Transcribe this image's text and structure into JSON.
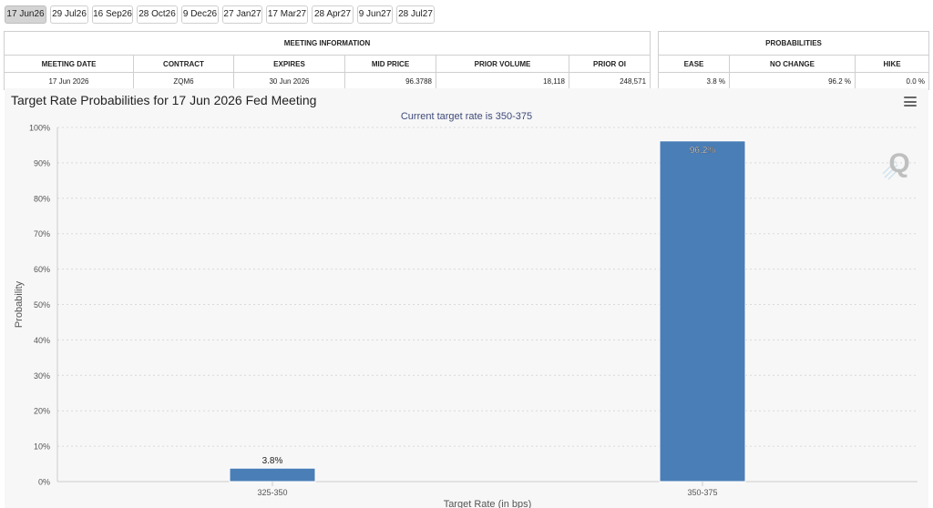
{
  "tabs": [
    {
      "label": "17 Jun26",
      "active": true
    },
    {
      "label": "29 Jul26"
    },
    {
      "label": "16 Sep26"
    },
    {
      "label": "28 Oct26"
    },
    {
      "label": "9 Dec26"
    },
    {
      "label": "27 Jan27"
    },
    {
      "label": "17 Mar27"
    },
    {
      "label": "28 Apr27"
    },
    {
      "label": "9 Jun27"
    },
    {
      "label": "28 Jul27"
    }
  ],
  "meeting_info": {
    "title": "MEETING INFORMATION",
    "headers": [
      "MEETING DATE",
      "CONTRACT",
      "EXPIRES",
      "MID PRICE",
      "PRIOR VOLUME",
      "PRIOR OI"
    ],
    "values": [
      "17 Jun 2026",
      "ZQM6",
      "30 Jun 2026",
      "96.3788",
      "18,118",
      "248,571"
    ]
  },
  "probabilities": {
    "title": "PROBABILITIES",
    "headers": [
      "EASE",
      "NO CHANGE",
      "HIKE"
    ],
    "values": [
      "3.8 %",
      "96.2 %",
      "0.0 %"
    ]
  },
  "chart": {
    "title": "Target Rate Probabilities for 17 Jun 2026 Fed Meeting",
    "subtitle": "Current target rate is 350-375",
    "watermark": "Q"
  },
  "chart_data": {
    "type": "bar",
    "title": "Target Rate Probabilities for 17 Jun 2026 Fed Meeting",
    "subtitle": "Current target rate is 350-375",
    "categories": [
      "325-350",
      "350-375"
    ],
    "values": [
      3.8,
      96.2
    ],
    "data_labels": [
      "3.8%",
      "96.2%"
    ],
    "xlabel": "Target Rate (in bps)",
    "ylabel": "Probability",
    "ylim": [
      0,
      100
    ],
    "yticks": [
      "0%",
      "10%",
      "20%",
      "30%",
      "40%",
      "50%",
      "60%",
      "70%",
      "80%",
      "90%",
      "100%"
    ],
    "grid": true,
    "bar_color": "#4a7eb7"
  }
}
